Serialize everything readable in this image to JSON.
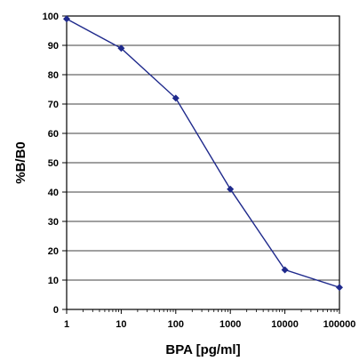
{
  "chart_data": {
    "type": "line",
    "title": "",
    "xlabel": "BPA [pg/ml]",
    "ylabel": "%B/B0",
    "x_scale": "log",
    "xlim": [
      1,
      100000
    ],
    "ylim": [
      0,
      100
    ],
    "x_ticks": [
      1,
      10,
      100,
      1000,
      10000,
      100000
    ],
    "x_tick_labels": [
      "1",
      "10",
      "100",
      "1000",
      "10000",
      "100000"
    ],
    "y_ticks": [
      0,
      10,
      20,
      30,
      40,
      50,
      60,
      70,
      80,
      90,
      100
    ],
    "y_tick_labels": [
      "0",
      "10",
      "20",
      "30",
      "40",
      "50",
      "60",
      "70",
      "80",
      "90",
      "100"
    ],
    "grid": "horizontal",
    "legend": "none",
    "series": [
      {
        "color": "#1f2a8c",
        "marker": "diamond",
        "points": [
          {
            "x": 1,
            "y": 99
          },
          {
            "x": 10,
            "y": 89
          },
          {
            "x": 100,
            "y": 72
          },
          {
            "x": 1000,
            "y": 41
          },
          {
            "x": 10000,
            "y": 13.5
          },
          {
            "x": 100000,
            "y": 7.5
          }
        ]
      }
    ]
  }
}
